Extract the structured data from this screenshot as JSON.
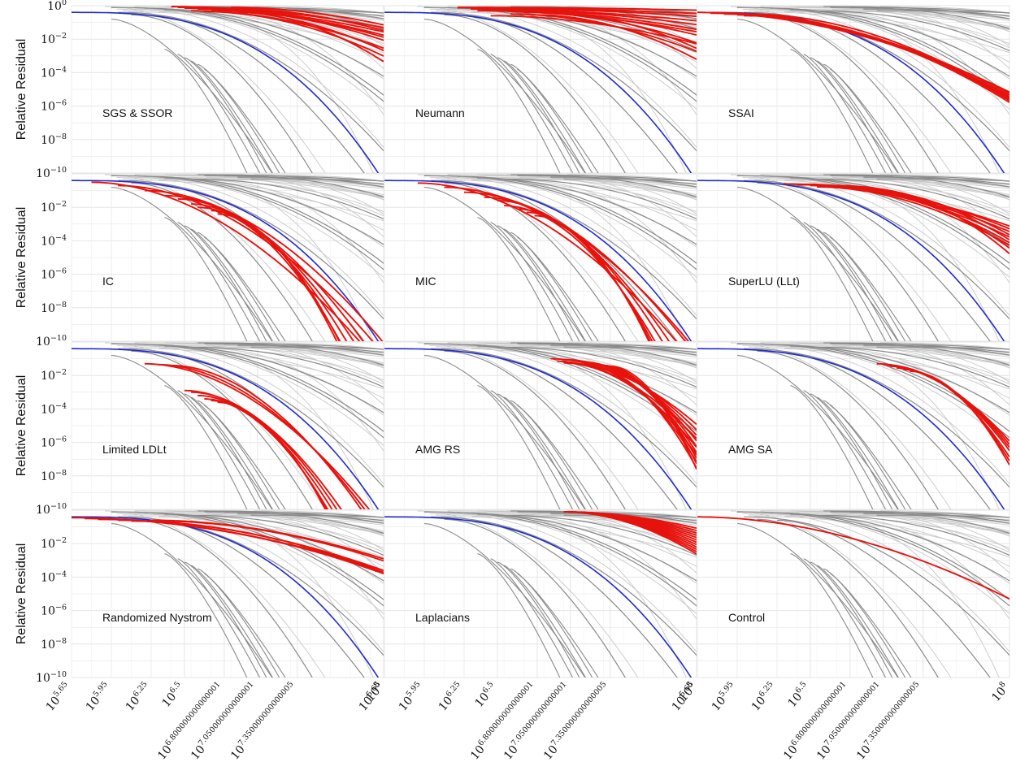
{
  "chart_data": {
    "type": "line",
    "layout": "4x3 small multiples",
    "ylabel": "Relative Residual",
    "yscale": "log",
    "ylim": [
      1e-10,
      1
    ],
    "y_ticks": [
      {
        "base": "10",
        "exp": "0"
      },
      {
        "base": "10",
        "exp": "−2"
      },
      {
        "base": "10",
        "exp": "−4"
      },
      {
        "base": "10",
        "exp": "−6"
      },
      {
        "base": "10",
        "exp": "−8"
      },
      {
        "base": "10",
        "exp": "−10"
      }
    ],
    "xscale": "log",
    "xlim_log10": [
      5.65,
      8.0
    ],
    "x_ticks": [
      {
        "base": "10",
        "exp": "5.65"
      },
      {
        "base": "10",
        "exp": "5.95"
      },
      {
        "base": "10",
        "exp": "6.25"
      },
      {
        "base": "10",
        "exp": "6.5"
      },
      {
        "base": "10",
        "exp": "6.800000000000001"
      },
      {
        "base": "10",
        "exp": "7.050000000000001"
      },
      {
        "base": "10",
        "exp": "7.350000000000005"
      },
      {
        "base": "10",
        "exp": "8"
      }
    ],
    "grid": true,
    "colors": {
      "highlight": "#e8120c",
      "reference": "#1f2bd0",
      "background_dark": "#8a8a8a",
      "background_light": "#c8c8c8",
      "grid": "#e6e6e6"
    },
    "panels": [
      {
        "label": "SGS & SSOR",
        "highlight": [
          [
            6.5,
            -0.15,
            1.15
          ],
          [
            6.45,
            -0.1,
            1.05
          ],
          [
            6.7,
            -0.25,
            1.3
          ],
          [
            6.6,
            -0.2,
            1.2
          ],
          [
            6.8,
            -0.15,
            0.95
          ],
          [
            6.55,
            -0.3,
            1.6
          ],
          [
            6.65,
            -0.35,
            1.9
          ],
          [
            6.9,
            -0.4,
            2.1
          ],
          [
            6.75,
            -0.3,
            1.7
          ],
          [
            6.85,
            -0.1,
            0.75
          ],
          [
            6.4,
            -0.05,
            0.9
          ]
        ]
      },
      {
        "label": "Neumann",
        "highlight": [
          [
            6.2,
            -0.1,
            0.12
          ],
          [
            6.2,
            -0.12,
            0.25
          ],
          [
            6.3,
            -0.15,
            0.35
          ],
          [
            6.3,
            -0.2,
            0.5
          ],
          [
            6.4,
            -0.22,
            0.65
          ],
          [
            6.5,
            -0.3,
            0.8
          ],
          [
            6.6,
            -0.35,
            1.0
          ],
          [
            6.7,
            -0.4,
            1.3
          ],
          [
            6.6,
            -0.5,
            1.6
          ],
          [
            6.8,
            -0.55,
            1.9
          ],
          [
            6.9,
            -0.45,
            1.5
          ],
          [
            6.35,
            -0.3,
            0.9
          ],
          [
            6.45,
            -0.6,
            1.2
          ]
        ]
      },
      {
        "label": "SSAI",
        "highlight": [
          [
            5.65,
            -0.4,
            3.4
          ],
          [
            5.75,
            -0.45,
            3.5
          ],
          [
            5.85,
            -0.5,
            3.6
          ],
          [
            5.95,
            -0.55,
            3.65
          ],
          [
            6.0,
            -0.6,
            3.7
          ],
          [
            5.9,
            -0.48,
            3.55
          ],
          [
            6.05,
            -0.5,
            3.62
          ],
          [
            5.8,
            -0.42,
            3.45
          ]
        ]
      },
      {
        "label": "IC",
        "highlight": [
          [
            5.8,
            -0.5,
            8.0
          ],
          [
            6.0,
            -0.7,
            7.2
          ],
          [
            6.2,
            -1.0,
            6.5
          ],
          [
            6.35,
            -1.3,
            7.5
          ],
          [
            6.45,
            -1.5,
            8.2
          ],
          [
            6.55,
            -1.8,
            8.8
          ],
          [
            6.6,
            -2.0,
            9.5
          ],
          [
            6.7,
            -2.2,
            9.8
          ],
          [
            6.75,
            -2.4,
            10.2
          ]
        ]
      },
      {
        "label": "MIC",
        "highlight": [
          [
            5.9,
            -0.55,
            7.8
          ],
          [
            6.1,
            -0.8,
            7.0
          ],
          [
            6.25,
            -1.1,
            7.0
          ],
          [
            6.4,
            -1.4,
            8.0
          ],
          [
            6.5,
            -1.6,
            8.6
          ],
          [
            6.55,
            -1.9,
            9.2
          ],
          [
            6.65,
            -2.1,
            9.7
          ],
          [
            6.72,
            -2.3,
            10.1
          ],
          [
            6.78,
            -2.5,
            10.4
          ]
        ]
      },
      {
        "label": "SuperLU (LLt)",
        "highlight": [
          [
            6.3,
            -0.6,
            1.8
          ],
          [
            6.4,
            -0.65,
            2.0
          ],
          [
            6.5,
            -0.7,
            2.2
          ],
          [
            6.6,
            -0.75,
            2.4
          ],
          [
            6.7,
            -0.7,
            2.1
          ],
          [
            6.8,
            -0.8,
            2.6
          ],
          [
            6.9,
            -0.85,
            2.8
          ],
          [
            6.45,
            -0.62,
            1.9
          ],
          [
            6.75,
            -0.72,
            2.3
          ],
          [
            6.55,
            -0.78,
            2.5
          ]
        ]
      },
      {
        "label": "Limited LDLt",
        "highlight": [
          [
            6.2,
            -1.3,
            7.0
          ],
          [
            6.3,
            -1.35,
            7.3
          ],
          [
            6.4,
            -1.4,
            7.6
          ],
          [
            6.5,
            -2.9,
            8.0
          ],
          [
            6.55,
            -3.0,
            8.5
          ],
          [
            6.6,
            -3.2,
            9.0
          ],
          [
            6.65,
            -3.4,
            9.6
          ],
          [
            6.7,
            -3.5,
            10.0
          ],
          [
            6.75,
            -3.6,
            10.4
          ]
        ]
      },
      {
        "label": "AMG RS",
        "highlight": [
          [
            6.9,
            -1.0,
            2.8
          ],
          [
            7.0,
            -1.05,
            3.0
          ],
          [
            7.05,
            -1.1,
            3.2
          ],
          [
            7.1,
            -1.15,
            3.4
          ],
          [
            7.15,
            -1.2,
            3.6
          ],
          [
            7.2,
            -1.3,
            3.8
          ],
          [
            7.25,
            -1.35,
            4.0
          ],
          [
            7.3,
            -1.4,
            4.2
          ],
          [
            7.35,
            -1.45,
            4.4
          ],
          [
            7.0,
            -1.25,
            3.6
          ],
          [
            7.1,
            -1.3,
            3.9
          ],
          [
            7.2,
            -1.5,
            4.3
          ],
          [
            6.95,
            -1.15,
            3.3
          ],
          [
            7.15,
            -1.4,
            4.1
          ]
        ]
      },
      {
        "label": "AMG SA",
        "highlight": [
          [
            7.0,
            -1.3,
            3.3
          ],
          [
            7.05,
            -1.35,
            3.4
          ],
          [
            7.1,
            -1.45,
            3.6
          ],
          [
            7.15,
            -1.55,
            3.8
          ],
          [
            7.2,
            -1.65,
            3.9
          ],
          [
            7.25,
            -1.75,
            4.0
          ],
          [
            7.08,
            -1.4,
            3.5
          ]
        ]
      },
      {
        "label": "Randomized Nystrom",
        "highlight": [
          [
            5.65,
            -0.45,
            2.25
          ],
          [
            5.75,
            -0.5,
            2.3
          ],
          [
            5.85,
            -0.55,
            2.32
          ],
          [
            6.0,
            -0.6,
            2.15
          ],
          [
            6.1,
            -0.65,
            2.2
          ],
          [
            6.25,
            -0.6,
            1.65
          ],
          [
            6.3,
            -0.65,
            1.7
          ]
        ]
      },
      {
        "label": "Laplacians",
        "highlight": [
          [
            7.0,
            -0.1,
            0.7
          ],
          [
            7.0,
            -0.1,
            0.8
          ],
          [
            7.0,
            -0.1,
            0.9
          ],
          [
            7.0,
            -0.1,
            1.0
          ],
          [
            7.0,
            -0.1,
            1.1
          ],
          [
            7.0,
            -0.1,
            1.2
          ],
          [
            7.0,
            -0.1,
            1.3
          ],
          [
            7.0,
            -0.1,
            1.4
          ],
          [
            7.0,
            -0.1,
            1.5
          ],
          [
            7.0,
            -0.1,
            1.6
          ],
          [
            7.0,
            -0.1,
            1.7
          ],
          [
            7.0,
            -0.1,
            1.8
          ]
        ]
      },
      {
        "label": "Control",
        "highlight": [
          [
            5.65,
            -0.4,
            3.5
          ]
        ]
      }
    ]
  }
}
